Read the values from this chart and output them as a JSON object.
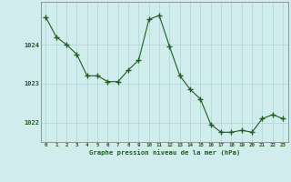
{
  "x": [
    0,
    1,
    2,
    3,
    4,
    5,
    6,
    7,
    8,
    9,
    10,
    11,
    12,
    13,
    14,
    15,
    16,
    17,
    18,
    19,
    20,
    21,
    22,
    23
  ],
  "y": [
    1024.7,
    1024.2,
    1024.0,
    1023.75,
    1023.2,
    1023.2,
    1023.05,
    1023.05,
    1023.35,
    1023.6,
    1024.65,
    1024.75,
    1023.95,
    1023.2,
    1022.85,
    1022.6,
    1021.95,
    1021.75,
    1021.75,
    1021.8,
    1021.75,
    1022.1,
    1022.2,
    1022.1
  ],
  "line_color": "#1e5e1e",
  "marker_color": "#1e5e1e",
  "bg_color": "#d0ecec",
  "grid_color": "#b0d8d8",
  "xlabel": "Graphe pression niveau de la mer (hPa)",
  "xlabel_color": "#1e5e1e",
  "tick_color": "#1e5e1e",
  "axis_color": "#888888",
  "ylim": [
    1021.5,
    1025.1
  ],
  "yticks": [
    1022,
    1023,
    1024
  ],
  "xtick_labels": [
    "0",
    "1",
    "2",
    "3",
    "4",
    "5",
    "6",
    "7",
    "8",
    "9",
    "10",
    "11",
    "12",
    "13",
    "14",
    "15",
    "16",
    "17",
    "18",
    "19",
    "20",
    "21",
    "22",
    "23"
  ]
}
